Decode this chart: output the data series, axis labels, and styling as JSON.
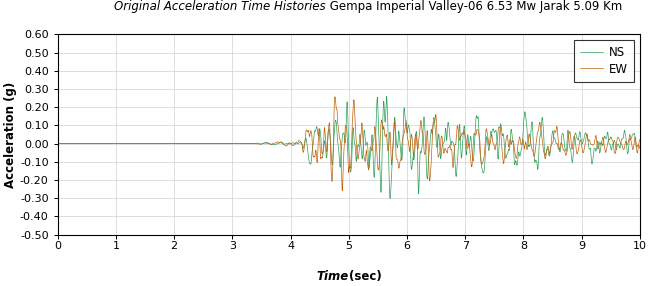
{
  "title_italic": "Original Acceleration Time Histories",
  "title_normal": " Gempa Imperial Valley-06 6.53 Mw Jarak 5.09 Km",
  "xlabel_italic": "Time",
  "xlabel_normal": "(sec)",
  "ylabel": "Acceleration (g)",
  "xlim": [
    0,
    10
  ],
  "ylim": [
    -0.5,
    0.6
  ],
  "yticks": [
    -0.5,
    -0.4,
    -0.3,
    -0.2,
    -0.1,
    0.0,
    0.1,
    0.2,
    0.3,
    0.4,
    0.5,
    0.6
  ],
  "xticks": [
    0,
    1,
    2,
    3,
    4,
    5,
    6,
    7,
    8,
    9,
    10
  ],
  "ns_color": "#2ca05a",
  "ew_color": "#c0610a",
  "legend_ns": "NS",
  "legend_ew": "EW",
  "dt": 0.005,
  "duration": 10.0,
  "background_color": "#ffffff",
  "grid_color": "#d0d0d0"
}
